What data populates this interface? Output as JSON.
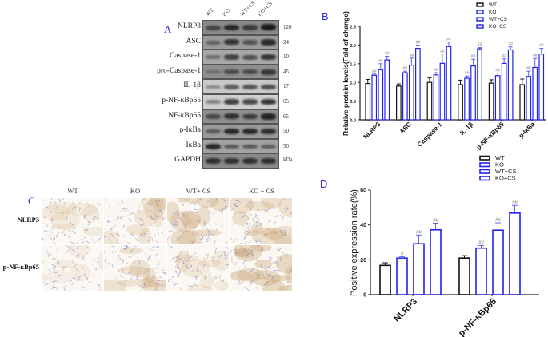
{
  "panel_A": {
    "letter": "A",
    "columns": [
      "WT",
      "KO",
      "WT+CS",
      "KO+CS"
    ],
    "rows": [
      {
        "label": "NLRP3",
        "kda": "120",
        "intensity": [
          0.6,
          0.85,
          0.7,
          0.95
        ],
        "bg": "#8a8a8a"
      },
      {
        "label": "ASC",
        "kda": "24",
        "intensity": [
          0.4,
          0.8,
          0.55,
          0.85
        ],
        "bg": "#9b9b9b"
      },
      {
        "label": "Caspase-1",
        "kda": "10",
        "intensity": [
          0.35,
          0.7,
          0.6,
          0.8
        ],
        "bg": "#a8a8a8"
      },
      {
        "label": "pro-Caspase-1",
        "kda": "45",
        "intensity": [
          0.2,
          0.55,
          0.55,
          0.75
        ],
        "bg": "#8f8f8f"
      },
      {
        "label": "IL-1β",
        "kda": "17",
        "intensity": [
          0.25,
          0.55,
          0.6,
          0.65
        ],
        "bg": "#c9c9c9"
      },
      {
        "label": "p-NF-κBp65",
        "kda": "65",
        "intensity": [
          0.3,
          0.75,
          0.7,
          0.8
        ],
        "bg": "#cfcfcf"
      },
      {
        "label": "NF-κBp65",
        "kda": "65",
        "intensity": [
          0.6,
          0.8,
          0.75,
          0.9
        ],
        "bg": "#8f8f8f"
      },
      {
        "label": "p-IκBa",
        "kda": "50",
        "intensity": [
          0.45,
          0.85,
          0.85,
          0.8
        ],
        "bg": "#9a9a9a"
      },
      {
        "label": "IκBa",
        "kda": "50",
        "intensity": [
          0.85,
          0.5,
          0.5,
          0.45
        ],
        "bg": "#a3a3a3"
      },
      {
        "label": "GAPDH",
        "kda": "",
        "intensity": [
          0.8,
          0.8,
          0.8,
          0.8
        ],
        "bg": "#8a8a8a"
      }
    ],
    "kda_unit": "kDa"
  },
  "panel_C": {
    "letter": "C",
    "columns": [
      "WT",
      "KO",
      "WT+ CS",
      "KO + CS"
    ],
    "rows": [
      "NLRP3",
      "p-NF-κBp65"
    ],
    "stain_level": [
      [
        0.05,
        0.25,
        0.55,
        0.45
      ],
      [
        0.0,
        0.4,
        0.15,
        0.7
      ]
    ]
  },
  "chart_data": [
    {
      "type": "bar",
      "panel": "B",
      "title": "",
      "ylabel": "Relative protein levels(Fold of change)",
      "xlabel": "",
      "ylim": [
        0,
        2.5
      ],
      "yticks": [
        "0.0",
        "0.5",
        "1.0",
        "1.5",
        "2.0",
        "2.5"
      ],
      "ytick_values": [
        0,
        0.5,
        1.0,
        1.5,
        2.0,
        2.5
      ],
      "categories": [
        "NLRP3",
        "ASC",
        "Caspase-1",
        "IL-1β",
        "p-NF-κBp65",
        "p-IκBa"
      ],
      "legend": {
        "position": "top-right",
        "entries": [
          "WT",
          "KO",
          "WT+CS",
          "KO+CS"
        ]
      },
      "series": [
        {
          "name": "WT",
          "color": "#111111",
          "values": [
            0.97,
            0.9,
            1.0,
            0.94,
            0.98,
            0.94
          ],
          "errors": [
            0.11,
            0.06,
            0.12,
            0.12,
            0.09,
            0.15
          ],
          "annotations": [
            "",
            "",
            "",
            "",
            "",
            ""
          ]
        },
        {
          "name": "KO",
          "color": "#2222ee",
          "values": [
            1.19,
            1.26,
            1.2,
            1.11,
            1.18,
            1.16
          ],
          "errors": [
            0.03,
            0.04,
            0.06,
            0.06,
            0.07,
            0.14
          ],
          "annotations": [
            "##",
            "##",
            "##",
            "##",
            "##",
            "##"
          ]
        },
        {
          "name": "WT+CS",
          "color": "#2222ee",
          "values": [
            1.34,
            1.46,
            1.51,
            1.44,
            1.51,
            1.4
          ],
          "errors": [
            0.16,
            0.19,
            0.25,
            0.18,
            0.12,
            0.24
          ],
          "annotations": [
            "##",
            "##",
            "##",
            "##",
            "##",
            "##"
          ]
        },
        {
          "name": "KO+CS",
          "color": "#2222ee",
          "values": [
            1.6,
            1.91,
            1.96,
            1.9,
            1.87,
            1.76
          ],
          "errors": [
            0.1,
            0.09,
            0.12,
            0.03,
            0.08,
            0.15
          ],
          "annotations": [
            "##",
            "##",
            "##",
            "##",
            "##",
            "##"
          ]
        }
      ]
    },
    {
      "type": "bar",
      "panel": "D",
      "title": "",
      "ylabel": "Positive expression rate(%)",
      "xlabel": "",
      "ylim": [
        0,
        60
      ],
      "yticks": [
        "0",
        "20",
        "40",
        "60"
      ],
      "ytick_values": [
        0,
        20,
        40,
        60
      ],
      "categories": [
        "NLRP3",
        "p-NF-κBp65"
      ],
      "legend": {
        "position": "top-right",
        "entries": [
          "WT",
          "KO",
          "WT+CS",
          "KO+CS"
        ]
      },
      "series": [
        {
          "name": "WT",
          "color": "#111111",
          "values": [
            16.8,
            21.0
          ],
          "errors": [
            1.5,
            1.4
          ],
          "annotations": [
            "",
            ""
          ]
        },
        {
          "name": "KO",
          "color": "#2222ee",
          "values": [
            21.0,
            26.7
          ],
          "errors": [
            0.8,
            1.5
          ],
          "annotations": [
            "#",
            "##"
          ]
        },
        {
          "name": "WT+CS",
          "color": "#2222ee",
          "values": [
            29.2,
            37.0
          ],
          "errors": [
            5.0,
            4.2
          ],
          "annotations": [
            "##",
            "##"
          ]
        },
        {
          "name": "KO+CS",
          "color": "#2222ee",
          "values": [
            37.2,
            46.8
          ],
          "errors": [
            3.8,
            4.4
          ],
          "annotations": [
            "##",
            "##"
          ]
        }
      ]
    }
  ]
}
